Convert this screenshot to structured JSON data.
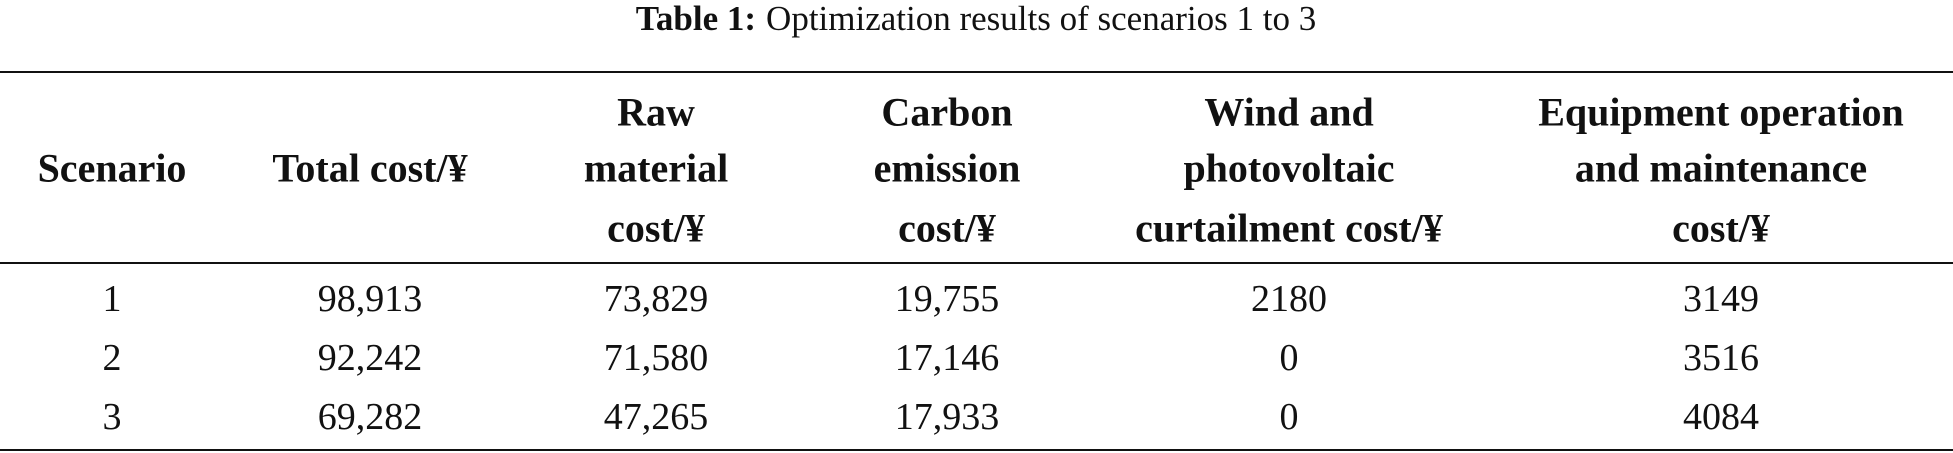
{
  "caption": {
    "label": "Table 1:",
    "text": "Optimization results of scenarios 1 to 3"
  },
  "table": {
    "headers": [
      [
        "Scenario"
      ],
      [
        "Total cost/¥"
      ],
      [
        "Raw",
        "material",
        "cost/¥"
      ],
      [
        "Carbon",
        "emission",
        "cost/¥"
      ],
      [
        "Wind and",
        "photovoltaic",
        "curtailment cost/¥"
      ],
      [
        "Equipment operation",
        "and maintenance",
        "cost/¥"
      ]
    ],
    "rows": [
      [
        "1",
        "98,913",
        "73,829",
        "19,755",
        "2180",
        "3149"
      ],
      [
        "2",
        "92,242",
        "71,580",
        "17,146",
        "0",
        "3516"
      ],
      [
        "3",
        "69,282",
        "47,265",
        "17,933",
        "0",
        "4084"
      ]
    ]
  }
}
